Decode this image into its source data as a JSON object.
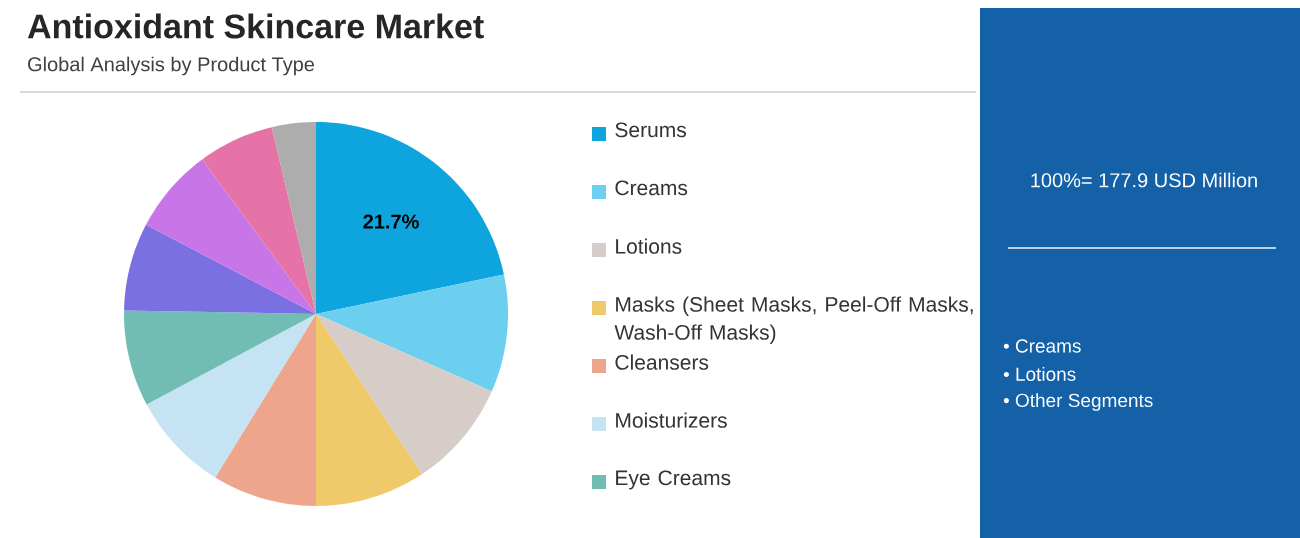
{
  "chart_data": {
    "type": "pie",
    "title": "Antioxidant Skincare Market",
    "subtitle": "Global Analysis by Product Type",
    "categories": [
      "Serums",
      "Creams",
      "Lotions",
      "Masks (Sheet Masks, Peel-Off Masks, Wash-Off Masks)",
      "Cleansers",
      "Moisturizers",
      "Eye Creams",
      null,
      null,
      null,
      null
    ],
    "values": [
      21.7,
      9.9,
      9.1,
      9.3,
      8.8,
      8.4,
      8.1,
      7.4,
      7.2,
      6.4,
      3.7
    ],
    "colors": [
      "#0ea5de",
      "#6ccff0",
      "#d6cdc9",
      "#f0c96a",
      "#eda68b",
      "#c6e3f3",
      "#72bdb3",
      "#7a70e2",
      "#c875e8",
      "#e673a8",
      "#adadad"
    ],
    "value_labels": [
      "21.7%",
      null,
      null,
      null,
      null,
      null,
      null,
      null,
      null,
      null,
      null
    ],
    "legend": "right",
    "annotations": [
      "100%= 177.9 USD Million",
      "• Creams",
      "• Lotions",
      "• Other Segments"
    ]
  }
}
